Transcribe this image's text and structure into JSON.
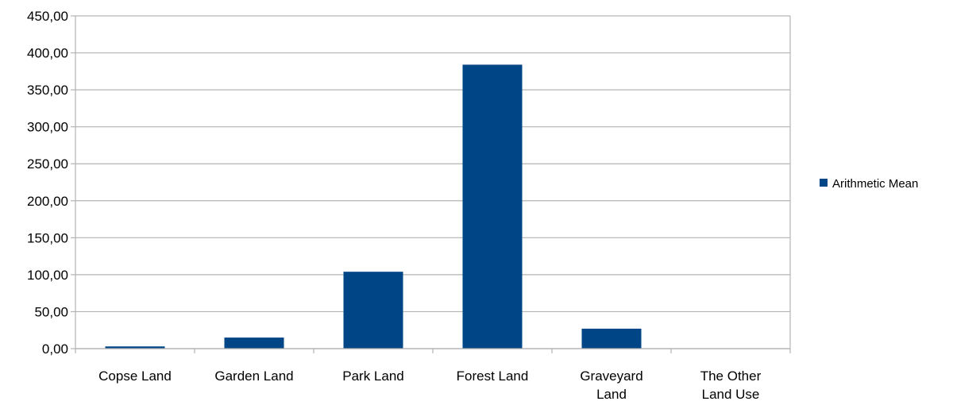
{
  "chart_data": {
    "type": "bar",
    "categories": [
      [
        "Copse Land"
      ],
      [
        "Garden Land"
      ],
      [
        "Park Land"
      ],
      [
        "Forest Land"
      ],
      [
        "Graveyard",
        "Land"
      ],
      [
        "The Other",
        "Land Use"
      ]
    ],
    "series": [
      {
        "name": "Arithmetic Mean",
        "color": "#004586",
        "values": [
          3,
          15,
          104,
          384,
          27,
          0
        ]
      }
    ],
    "ylim": [
      0,
      450
    ],
    "yticks": [
      "0,00",
      "50,00",
      "100,00",
      "150,00",
      "200,00",
      "250,00",
      "300,00",
      "350,00",
      "400,00",
      "450,00"
    ],
    "grid": true,
    "legend_position": "right",
    "title": "",
    "xlabel": "",
    "ylabel": ""
  }
}
